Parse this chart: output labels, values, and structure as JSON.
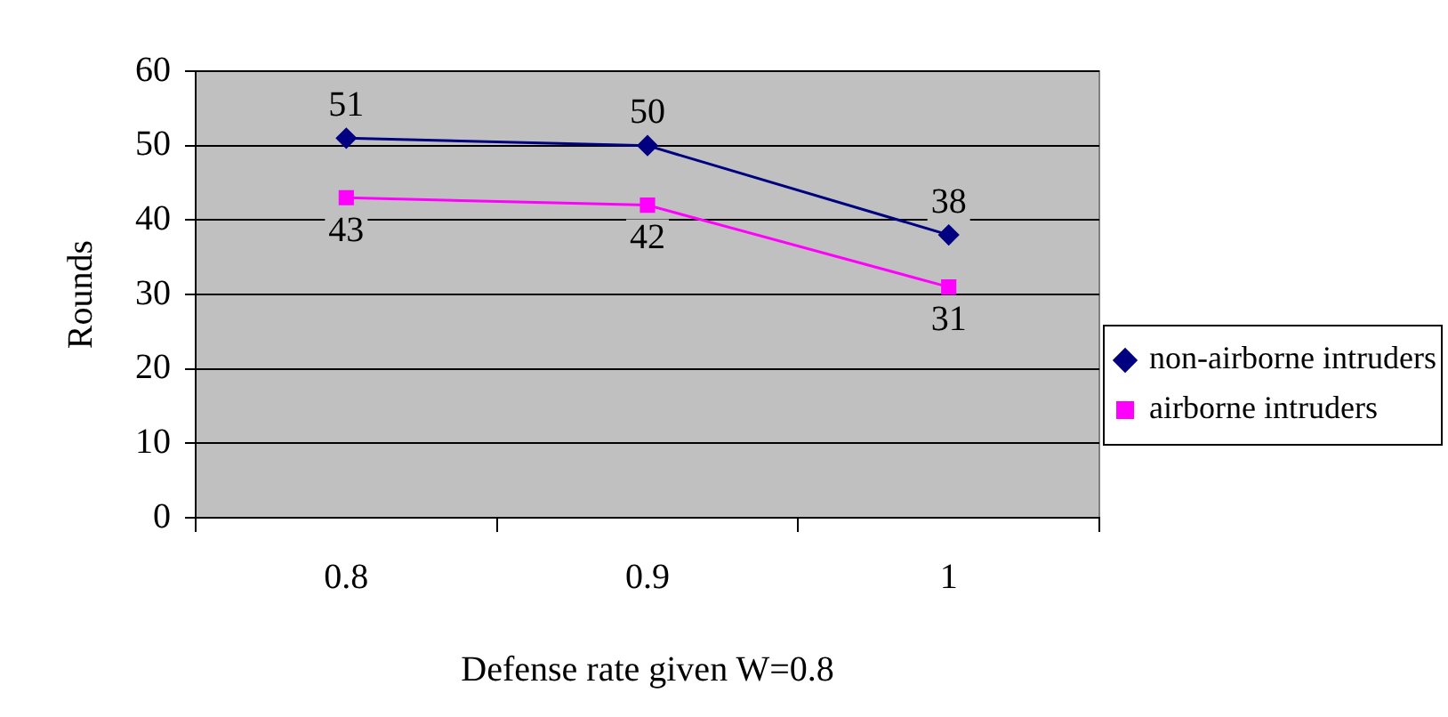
{
  "chart_data": {
    "type": "line",
    "xlabel": "Defense rate given W=0.8",
    "ylabel": "Rounds",
    "categories": [
      "0.8",
      "0.9",
      "1"
    ],
    "series": [
      {
        "name": "non-airborne intruders",
        "color": "#000080",
        "values": [
          51,
          50,
          38
        ],
        "marker": "diamond"
      },
      {
        "name": "airborne intruders",
        "color": "#ff00ff",
        "values": [
          43,
          42,
          31
        ],
        "marker": "square"
      }
    ],
    "ylim": [
      0,
      60
    ],
    "yticks": [
      0,
      10,
      20,
      30,
      40,
      50,
      60
    ],
    "grid": "y",
    "legend": "right",
    "data_labels": true,
    "line_style": "solid"
  }
}
